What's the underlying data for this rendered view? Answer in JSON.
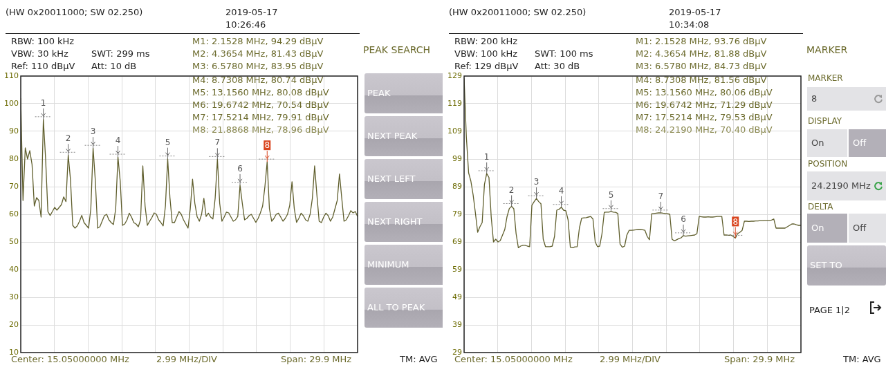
{
  "chart_data": [
    {
      "type": "line",
      "title": "(HW 0x20011000; SW 02.250)",
      "color": "#5f5e2c",
      "marker": "none",
      "grid": true,
      "tick_labels": "y",
      "ylim": [
        10,
        110
      ],
      "yticks": [
        10,
        20,
        30,
        40,
        50,
        60,
        70,
        80,
        90,
        100,
        110
      ],
      "categories": [
        null,
        null,
        null,
        null,
        null,
        null,
        null,
        null,
        null,
        null,
        null,
        null,
        null,
        null,
        null,
        null,
        null,
        null,
        null,
        null,
        null,
        null,
        null,
        null,
        null,
        null,
        null,
        null,
        null,
        null,
        null,
        null,
        null,
        null,
        null,
        null,
        null,
        null,
        null,
        null,
        null,
        null,
        null,
        null,
        null,
        null,
        null,
        null,
        null,
        null,
        null,
        null,
        null,
        null,
        null,
        null,
        null,
        null,
        null,
        null,
        null,
        null,
        null,
        null,
        null,
        null,
        null,
        null,
        null,
        null,
        null,
        null,
        null,
        null,
        null,
        null,
        null,
        null,
        null,
        null,
        null,
        null,
        null,
        null,
        null,
        null,
        null,
        null,
        null,
        null,
        null,
        null,
        null,
        null,
        null,
        null,
        null,
        null,
        null,
        null,
        null,
        null,
        null,
        null,
        null,
        null,
        null,
        null,
        null,
        null,
        null,
        null,
        null,
        null,
        null,
        null,
        null,
        null,
        null,
        null,
        null,
        null,
        null,
        null,
        null,
        null,
        null,
        null,
        null,
        null,
        null,
        null,
        null,
        null,
        null,
        null,
        null,
        null,
        null,
        null,
        null,
        null,
        null,
        null,
        null,
        null,
        null,
        null,
        null,
        null
      ],
      "values": [
        102,
        65,
        84,
        80,
        83,
        78,
        63,
        66,
        65,
        59,
        94.29,
        80,
        61,
        59.6,
        61,
        62.5,
        61.5,
        62.5,
        63.5,
        66.3,
        64.6,
        81.43,
        72.5,
        56,
        55,
        55.8,
        57.5,
        59.6,
        57,
        56,
        55,
        62,
        83.95,
        72,
        55,
        55.5,
        57.5,
        59.5,
        60,
        58,
        57,
        56.3,
        62,
        80.74,
        72,
        56,
        56.5,
        58,
        60.4,
        59,
        57,
        56.5,
        55.5,
        58,
        77.5,
        63,
        56,
        57.5,
        58.8,
        60.5,
        60,
        58,
        57,
        55.8,
        63,
        80.08,
        66,
        57,
        57,
        59,
        61,
        60,
        58,
        56.5,
        55,
        62,
        72.7,
        64,
        59.2,
        57.5,
        60,
        65.8,
        59.2,
        60.4,
        59,
        58.3,
        65.8,
        79.91,
        64,
        57.5,
        59,
        60.8,
        60.5,
        59,
        57.5,
        58,
        59.2,
        70.54,
        64,
        58,
        58.5,
        59.5,
        60,
        58.5,
        57.1,
        58.5,
        60.5,
        63,
        70,
        78.96,
        62,
        57.5,
        58.5,
        60,
        60.4,
        59,
        57.5,
        58.5,
        60,
        63.3,
        71.8,
        62,
        57.1,
        58.5,
        60.4,
        59.5,
        58,
        57.5,
        60,
        65.8,
        77.5,
        67,
        57.5,
        57,
        59,
        60.4,
        59.5,
        57.5,
        59,
        62,
        65,
        74.6,
        65.8,
        57.5,
        58,
        59.5,
        61.3,
        60.5,
        61,
        59.2
      ],
      "annotations": [
        "2019-05-17",
        "10:26:46",
        "RBW: 100 kHz",
        "VBW: 30 kHz",
        "SWT: 299 ms",
        "Ref: 110 dBµV",
        "Att: 10 dB",
        "M1: 2.1528 MHz, 94.29 dBµV",
        "M2: 4.3654 MHz, 81.43 dBµV",
        "M3: 6.5780 MHz, 83.95 dBµV",
        "M4: 8.7308 MHz, 80.74 dBµV",
        "M5: 13.1560 MHz, 80.08 dBµV",
        "M6: 19.6742 MHz, 70.54 dBµV",
        "M7: 17.5214 MHz, 79.91 dBµV",
        "M8: 21.8868 MHz, 78.96 dBµV",
        "Center: 15.05000000 MHz",
        "2.99 MHz/DIV",
        "Span: 29.9 MHz",
        "TM: AVG",
        "PEAK SEARCH",
        "PEAK",
        "NEXT PEAK",
        "NEXT LEFT",
        "NEXT RIGHT",
        "MINIMUM",
        "ALL TO PEAK",
        {
          "text": "1",
          "y": 94.29
        },
        {
          "text": "2",
          "y": 81.43
        },
        {
          "text": "3",
          "y": 83.95
        },
        {
          "text": "4",
          "y": 80.74
        },
        {
          "text": "5",
          "y": 80.08
        },
        {
          "text": "6",
          "y": 70.54
        },
        {
          "text": "7",
          "y": 79.91
        },
        {
          "text": "8",
          "y": 78.96
        }
      ]
    },
    {
      "type": "line",
      "title": "(HW 0x20011000; SW 02.250)",
      "color": "#5f5e2c",
      "marker": "none",
      "grid": true,
      "tick_labels": "y",
      "ylim": [
        29,
        129
      ],
      "yticks": [
        29,
        39,
        49,
        59,
        69,
        79,
        89,
        99,
        109,
        119,
        129
      ],
      "categories": [
        null,
        null,
        null,
        null,
        null,
        null,
        null,
        null,
        null,
        null,
        null,
        null,
        null,
        null,
        null,
        null,
        null,
        null,
        null,
        null,
        null,
        null,
        null,
        null,
        null,
        null,
        null,
        null,
        null,
        null,
        null,
        null,
        null,
        null,
        null,
        null,
        null,
        null,
        null,
        null,
        null,
        null,
        null,
        null,
        null,
        null,
        null,
        null,
        null,
        null,
        null,
        null,
        null,
        null,
        null,
        null,
        null,
        null,
        null,
        null,
        null,
        null,
        null,
        null,
        null,
        null,
        null,
        null,
        null,
        null,
        null,
        null,
        null,
        null,
        null,
        null,
        null,
        null,
        null,
        null,
        null,
        null,
        null,
        null,
        null,
        null,
        null,
        null,
        null,
        null,
        null,
        null,
        null,
        null,
        null,
        null,
        null,
        null,
        null,
        null,
        null,
        null,
        null,
        null,
        null,
        null,
        null,
        null,
        null,
        null,
        null,
        null,
        null,
        null,
        null,
        null,
        null,
        null,
        null,
        null,
        null,
        null,
        null,
        null,
        null,
        null,
        null,
        null,
        null,
        null,
        null,
        null,
        null,
        null,
        null,
        null,
        null,
        null,
        null,
        null,
        null,
        null,
        null,
        null,
        null,
        null,
        null,
        null,
        null,
        null
      ],
      "values": [
        128.2,
        107,
        94,
        91,
        86,
        79.5,
        72.5,
        74.5,
        76,
        89.8,
        93.76,
        92.3,
        78,
        69,
        70,
        69,
        69.5,
        71.5,
        73.5,
        78.2,
        81.1,
        81.88,
        81,
        72,
        66.9,
        67.5,
        67.8,
        67.8,
        67.5,
        67.3,
        82.3,
        83.6,
        84.73,
        83.6,
        82.8,
        70,
        67.3,
        67.3,
        67.3,
        67.5,
        71,
        80.5,
        80.8,
        81.56,
        80.5,
        80.3,
        77,
        67.1,
        66.9,
        67.2,
        67.3,
        74,
        77.6,
        77.7,
        77.8,
        78,
        78.2,
        77.3,
        69,
        67.3,
        67.5,
        72,
        79.7,
        79.8,
        79.8,
        80.06,
        79.8,
        79.7,
        79.3,
        68.2,
        67.1,
        67.5,
        71.5,
        73.2,
        73.2,
        73.3,
        73.4,
        73.5,
        73.5,
        73.4,
        73.2,
        71,
        69.8,
        79.2,
        79.3,
        79.4,
        79.5,
        79.53,
        79.4,
        79.3,
        79.2,
        79,
        70,
        69.4,
        69.8,
        70.2,
        70.5,
        71.29,
        71.1,
        71.2,
        71.3,
        71.4,
        71.5,
        72,
        78.2,
        78.1,
        78,
        78,
        78.1,
        78,
        78,
        78.1,
        78.2,
        78.2,
        78.2,
        71.5,
        71.5,
        71.4,
        71.5,
        71,
        70.4,
        72,
        72.5,
        73.2,
        76.5,
        76.5,
        76.4,
        76.5,
        76.5,
        76.6,
        76.6,
        76.7,
        76.7,
        76.8,
        76.8,
        76.8,
        76.9,
        77.3,
        74,
        74,
        74,
        74,
        74,
        74.5,
        75,
        75.5,
        75.5,
        75.2,
        75,
        75
      ],
      "annotations": [
        "2019-05-17",
        "10:34:08",
        "RBW: 200 kHz",
        "VBW: 100 kHz",
        "SWT: 100 ms",
        "Ref: 129 dBµV",
        "Att: 30 dB",
        "M1: 2.1528 MHz, 93.76 dBµV",
        "M2: 4.3654 MHz, 81.88 dBµV",
        "M3: 6.5780 MHz, 84.73 dBµV",
        "M4: 8.7308 MHz, 81.56 dBµV",
        "M5: 13.1560 MHz, 80.06 dBµV",
        "M6: 19.6742 MHz, 71.29 dBµV",
        "M7: 17.5214 MHz, 79.53 dBµV",
        "M8: 24.2190 MHz, 70.40 dBµV",
        "Center: 15.05000000 MHz",
        "2.99 MHz/DIV",
        "Span: 29.9 MHz",
        "TM: AVG",
        "MARKER",
        "MARKER",
        "8",
        "DISPLAY",
        "On",
        "Off",
        "POSITION",
        "24.2190 MHz",
        "DELTA",
        "On",
        "Off",
        "SET TO",
        "PAGE 1|2",
        {
          "text": "1",
          "y": 93.76
        },
        {
          "text": "2",
          "y": 81.88
        },
        {
          "text": "3",
          "y": 84.73
        },
        {
          "text": "4",
          "y": 81.56
        },
        {
          "text": "5",
          "y": 80.06
        },
        {
          "text": "6",
          "y": 71.29
        },
        {
          "text": "7",
          "y": 79.53
        },
        {
          "text": "8",
          "y": 70.4
        }
      ]
    }
  ]
}
